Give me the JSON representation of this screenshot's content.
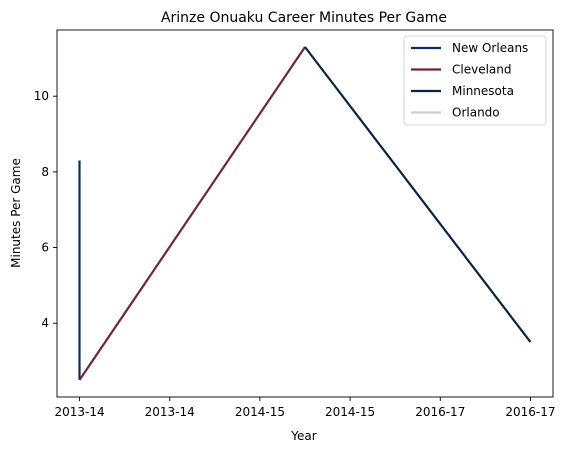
{
  "chart_data": {
    "type": "line",
    "title": "Arinze Onuaku Career Minutes Per Game",
    "xlabel": "Year",
    "ylabel": "Minutes Per Game",
    "x_tick_labels": [
      "2013-14",
      "2013-14",
      "2014-15",
      "2014-15",
      "2016-17",
      "2016-17"
    ],
    "x_range": [
      -0.25,
      5.25
    ],
    "ylim": [
      2.05,
      11.75
    ],
    "y_ticks": [
      4,
      6,
      8,
      10
    ],
    "grid": false,
    "legend_position": "top-right",
    "series": [
      {
        "name": "New Orleans",
        "color": "#0c2c56",
        "points": [
          [
            0,
            8.3
          ],
          [
            0,
            2.5
          ]
        ]
      },
      {
        "name": "Cleveland",
        "color": "#6f263d",
        "points": [
          [
            0,
            2.5
          ],
          [
            2.5,
            11.3
          ]
        ]
      },
      {
        "name": "Minnesota",
        "color": "#0c2340",
        "points": [
          [
            2.5,
            11.3
          ],
          [
            5,
            3.5
          ]
        ]
      },
      {
        "name": "Orlando",
        "color": "#c4ced4",
        "points": []
      }
    ]
  }
}
